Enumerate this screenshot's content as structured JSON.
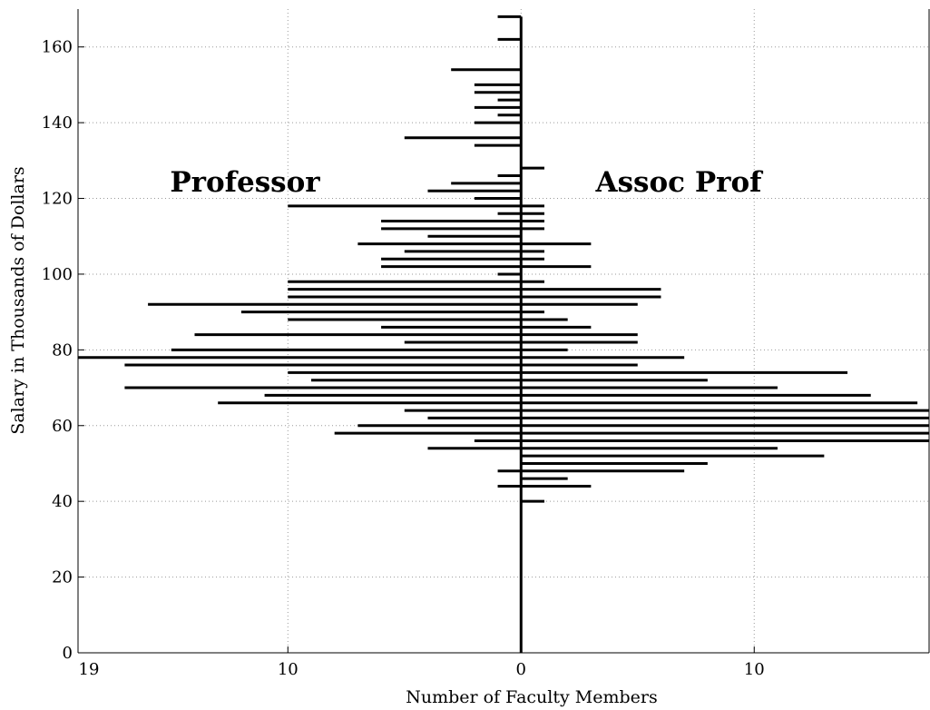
{
  "chart_data": {
    "type": "bar",
    "orientation": "horizontal-back-to-back",
    "xlabel": "Number of Faculty Members",
    "ylabel": "Salary in Thousands of Dollars",
    "xlim": [
      -19,
      17.5
    ],
    "ylim": [
      0,
      170
    ],
    "x_ticks": [
      {
        "value": -19,
        "label": "19"
      },
      {
        "value": -10,
        "label": "10"
      },
      {
        "value": 0,
        "label": "0"
      },
      {
        "value": 10,
        "label": "10"
      }
    ],
    "y_ticks": [
      0,
      20,
      40,
      60,
      80,
      100,
      120,
      140,
      160
    ],
    "grid": true,
    "bin_width": 2,
    "series": [
      {
        "name": "Professor",
        "side": "left",
        "bins": [
          {
            "y": 44,
            "value": 1
          },
          {
            "y": 48,
            "value": 1
          },
          {
            "y": 52,
            "value": 0
          },
          {
            "y": 54,
            "value": 4
          },
          {
            "y": 56,
            "value": 2
          },
          {
            "y": 58,
            "value": 8
          },
          {
            "y": 60,
            "value": 7
          },
          {
            "y": 62,
            "value": 4
          },
          {
            "y": 64,
            "value": 5
          },
          {
            "y": 66,
            "value": 13
          },
          {
            "y": 68,
            "value": 11
          },
          {
            "y": 70,
            "value": 17
          },
          {
            "y": 72,
            "value": 9
          },
          {
            "y": 74,
            "value": 10
          },
          {
            "y": 76,
            "value": 17
          },
          {
            "y": 78,
            "value": 19
          },
          {
            "y": 80,
            "value": 15
          },
          {
            "y": 82,
            "value": 5
          },
          {
            "y": 84,
            "value": 14
          },
          {
            "y": 86,
            "value": 6
          },
          {
            "y": 88,
            "value": 10
          },
          {
            "y": 90,
            "value": 12
          },
          {
            "y": 92,
            "value": 16
          },
          {
            "y": 94,
            "value": 10
          },
          {
            "y": 96,
            "value": 10
          },
          {
            "y": 98,
            "value": 10
          },
          {
            "y": 100,
            "value": 1
          },
          {
            "y": 102,
            "value": 6
          },
          {
            "y": 104,
            "value": 6
          },
          {
            "y": 106,
            "value": 5
          },
          {
            "y": 108,
            "value": 7
          },
          {
            "y": 110,
            "value": 4
          },
          {
            "y": 112,
            "value": 6
          },
          {
            "y": 114,
            "value": 6
          },
          {
            "y": 116,
            "value": 1
          },
          {
            "y": 118,
            "value": 10
          },
          {
            "y": 120,
            "value": 2
          },
          {
            "y": 122,
            "value": 4
          },
          {
            "y": 124,
            "value": 3
          },
          {
            "y": 126,
            "value": 1
          },
          {
            "y": 134,
            "value": 2
          },
          {
            "y": 136,
            "value": 5
          },
          {
            "y": 140,
            "value": 2
          },
          {
            "y": 142,
            "value": 1
          },
          {
            "y": 144,
            "value": 2
          },
          {
            "y": 146,
            "value": 1
          },
          {
            "y": 148,
            "value": 2
          },
          {
            "y": 150,
            "value": 2
          },
          {
            "y": 154,
            "value": 3
          },
          {
            "y": 162,
            "value": 1
          },
          {
            "y": 168,
            "value": 1
          }
        ]
      },
      {
        "name": "Assoc Prof",
        "side": "right",
        "bins": [
          {
            "y": 40,
            "value": 1
          },
          {
            "y": 44,
            "value": 3
          },
          {
            "y": 46,
            "value": 2
          },
          {
            "y": 48,
            "value": 7
          },
          {
            "y": 50,
            "value": 8
          },
          {
            "y": 52,
            "value": 13
          },
          {
            "y": 54,
            "value": 11
          },
          {
            "y": 56,
            "value": 18
          },
          {
            "y": 58,
            "value": 18
          },
          {
            "y": 60,
            "value": 18
          },
          {
            "y": 62,
            "value": 18
          },
          {
            "y": 64,
            "value": 18
          },
          {
            "y": 66,
            "value": 17
          },
          {
            "y": 68,
            "value": 15
          },
          {
            "y": 70,
            "value": 11
          },
          {
            "y": 72,
            "value": 8
          },
          {
            "y": 74,
            "value": 14
          },
          {
            "y": 76,
            "value": 5
          },
          {
            "y": 78,
            "value": 7
          },
          {
            "y": 80,
            "value": 2
          },
          {
            "y": 82,
            "value": 5
          },
          {
            "y": 84,
            "value": 5
          },
          {
            "y": 86,
            "value": 3
          },
          {
            "y": 88,
            "value": 2
          },
          {
            "y": 90,
            "value": 1
          },
          {
            "y": 92,
            "value": 5
          },
          {
            "y": 94,
            "value": 6
          },
          {
            "y": 96,
            "value": 6
          },
          {
            "y": 98,
            "value": 1
          },
          {
            "y": 102,
            "value": 3
          },
          {
            "y": 104,
            "value": 1
          },
          {
            "y": 106,
            "value": 1
          },
          {
            "y": 108,
            "value": 3
          },
          {
            "y": 112,
            "value": 1
          },
          {
            "y": 114,
            "value": 1
          },
          {
            "y": 116,
            "value": 1
          },
          {
            "y": 118,
            "value": 1
          },
          {
            "y": 128,
            "value": 1
          }
        ]
      }
    ],
    "center_line_x": 0
  }
}
